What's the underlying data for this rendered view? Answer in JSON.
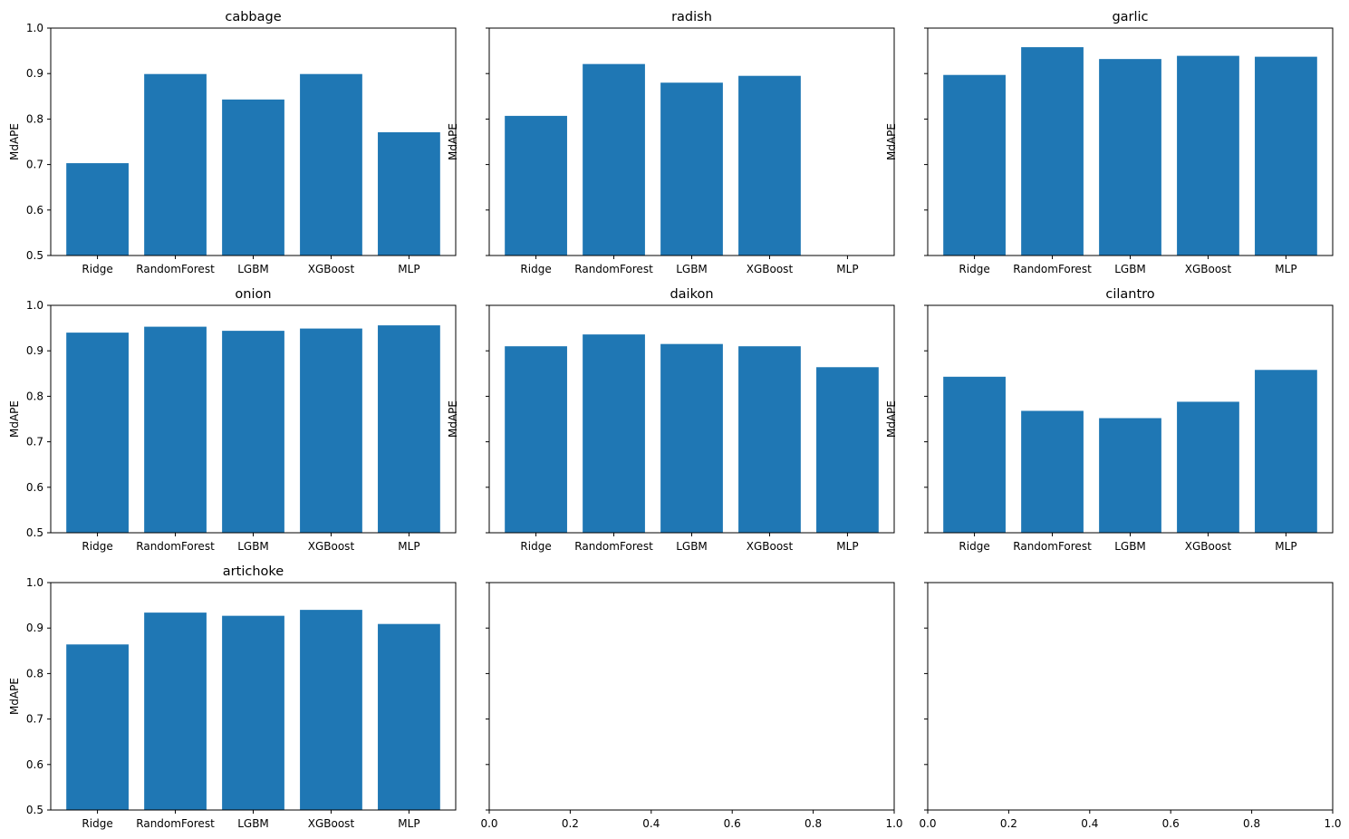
{
  "figure": {
    "bar_color": "#1f77b4"
  },
  "chart_data": [
    {
      "type": "bar",
      "title": "cabbage",
      "ylabel": "MdAPE",
      "categories": [
        "Ridge",
        "RandomForest",
        "LGBM",
        "XGBoost",
        "MLP"
      ],
      "values": [
        0.703,
        0.899,
        0.843,
        0.899,
        0.771
      ],
      "ylim": [
        0.5,
        1.0
      ],
      "yticks": [
        "0.5",
        "0.6",
        "0.7",
        "0.8",
        "0.9",
        "1.0"
      ],
      "show_ytick_labels": true,
      "grid": false
    },
    {
      "type": "bar",
      "title": "radish",
      "ylabel": "MdAPE",
      "categories": [
        "Ridge",
        "RandomForest",
        "LGBM",
        "XGBoost",
        "MLP"
      ],
      "values": [
        0.807,
        0.921,
        0.88,
        0.895,
        null
      ],
      "ylim": [
        0.5,
        1.0
      ],
      "yticks": [
        "0.5",
        "0.6",
        "0.7",
        "0.8",
        "0.9",
        "1.0"
      ],
      "show_ytick_labels": false,
      "grid": false
    },
    {
      "type": "bar",
      "title": "garlic",
      "ylabel": "MdAPE",
      "categories": [
        "Ridge",
        "RandomForest",
        "LGBM",
        "XGBoost",
        "MLP"
      ],
      "values": [
        0.897,
        0.958,
        0.932,
        0.939,
        0.937
      ],
      "ylim": [
        0.5,
        1.0
      ],
      "yticks": [
        "0.5",
        "0.6",
        "0.7",
        "0.8",
        "0.9",
        "1.0"
      ],
      "show_ytick_labels": false,
      "grid": false
    },
    {
      "type": "bar",
      "title": "onion",
      "ylabel": "MdAPE",
      "categories": [
        "Ridge",
        "RandomForest",
        "LGBM",
        "XGBoost",
        "MLP"
      ],
      "values": [
        0.94,
        0.953,
        0.944,
        0.949,
        0.956
      ],
      "ylim": [
        0.5,
        1.0
      ],
      "yticks": [
        "0.5",
        "0.6",
        "0.7",
        "0.8",
        "0.9",
        "1.0"
      ],
      "show_ytick_labels": true,
      "grid": false
    },
    {
      "type": "bar",
      "title": "daikon",
      "ylabel": "MdAPE",
      "categories": [
        "Ridge",
        "RandomForest",
        "LGBM",
        "XGBoost",
        "MLP"
      ],
      "values": [
        0.91,
        0.936,
        0.915,
        0.91,
        0.864
      ],
      "ylim": [
        0.5,
        1.0
      ],
      "yticks": [
        "0.5",
        "0.6",
        "0.7",
        "0.8",
        "0.9",
        "1.0"
      ],
      "show_ytick_labels": false,
      "grid": false
    },
    {
      "type": "bar",
      "title": "cilantro",
      "ylabel": "MdAPE",
      "categories": [
        "Ridge",
        "RandomForest",
        "LGBM",
        "XGBoost",
        "MLP"
      ],
      "values": [
        0.843,
        0.768,
        0.752,
        0.788,
        0.858
      ],
      "ylim": [
        0.5,
        1.0
      ],
      "yticks": [
        "0.5",
        "0.6",
        "0.7",
        "0.8",
        "0.9",
        "1.0"
      ],
      "show_ytick_labels": false,
      "grid": false
    },
    {
      "type": "bar",
      "title": "artichoke",
      "ylabel": "MdAPE",
      "categories": [
        "Ridge",
        "RandomForest",
        "LGBM",
        "XGBoost",
        "MLP"
      ],
      "values": [
        0.864,
        0.934,
        0.927,
        0.94,
        0.909
      ],
      "ylim": [
        0.5,
        1.0
      ],
      "yticks": [
        "0.5",
        "0.6",
        "0.7",
        "0.8",
        "0.9",
        "1.0"
      ],
      "show_ytick_labels": true,
      "grid": false
    },
    {
      "type": "bar",
      "title": "",
      "ylabel": "",
      "categories": [],
      "values": [],
      "xlim": [
        0.0,
        1.0
      ],
      "xticks": [
        "0.0",
        "0.2",
        "0.4",
        "0.6",
        "0.8",
        "1.0"
      ],
      "ylim": [
        0.5,
        1.0
      ],
      "yticks": [
        "0.5",
        "0.6",
        "0.7",
        "0.8",
        "0.9",
        "1.0"
      ],
      "show_ytick_labels": false,
      "grid": false
    },
    {
      "type": "bar",
      "title": "",
      "ylabel": "",
      "categories": [],
      "values": [],
      "xlim": [
        0.0,
        1.0
      ],
      "xticks": [
        "0.0",
        "0.2",
        "0.4",
        "0.6",
        "0.8",
        "1.0"
      ],
      "ylim": [
        0.5,
        1.0
      ],
      "yticks": [
        "0.5",
        "0.6",
        "0.7",
        "0.8",
        "0.9",
        "1.0"
      ],
      "show_ytick_labels": false,
      "grid": false
    }
  ]
}
